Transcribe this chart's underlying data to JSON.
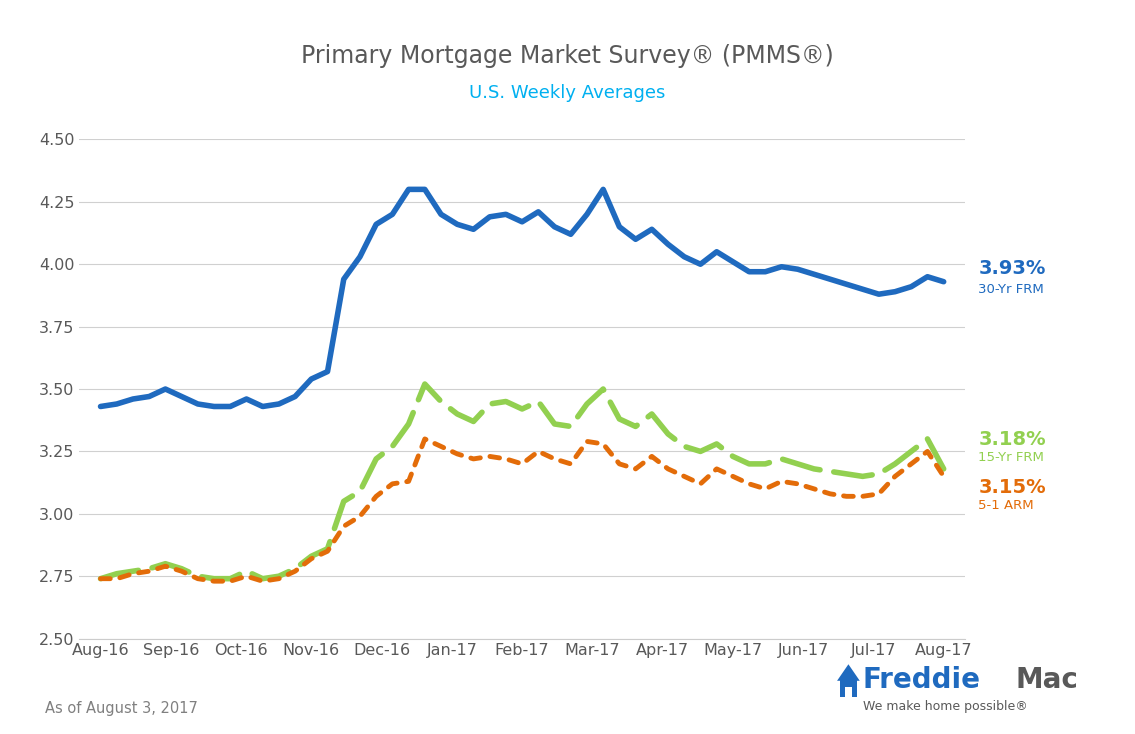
{
  "title": "Primary Mortgage Market Survey® (PMMS®)",
  "subtitle": "U.S. Weekly Averages",
  "footnote": "As of August 3, 2017",
  "ylim": [
    2.5,
    4.5
  ],
  "yticks": [
    2.5,
    2.75,
    3.0,
    3.25,
    3.5,
    3.75,
    4.0,
    4.25,
    4.5
  ],
  "x_labels": [
    "Aug-16",
    "Sep-16",
    "Oct-16",
    "Nov-16",
    "Dec-16",
    "Jan-17",
    "Feb-17",
    "Mar-17",
    "Apr-17",
    "May-17",
    "Jun-17",
    "Jul-17",
    "Aug-17"
  ],
  "title_color": "#595959",
  "subtitle_color": "#00b0f0",
  "footnote_color": "#808080",
  "background_color": "#ffffff",
  "label_30yr_pct": "3.93%",
  "label_30yr_name": "30-Yr FRM",
  "label_15yr_pct": "3.18%",
  "label_15yr_name": "15-Yr FRM",
  "label_arm_pct": "3.15%",
  "label_arm_name": "5-1 ARM",
  "color_30yr": "#1f6abf",
  "color_15yr": "#92d050",
  "color_arm": "#e36c09",
  "frm30": [
    3.43,
    3.44,
    3.46,
    3.47,
    3.5,
    3.47,
    3.44,
    3.43,
    3.43,
    3.46,
    3.43,
    3.44,
    3.47,
    3.54,
    3.57,
    3.94,
    4.03,
    4.16,
    4.2,
    4.3,
    4.3,
    4.2,
    4.16,
    4.14,
    4.19,
    4.2,
    4.17,
    4.21,
    4.15,
    4.12,
    4.2,
    4.3,
    4.15,
    4.1,
    4.14,
    4.08,
    4.03,
    4.0,
    4.05,
    4.01,
    3.97,
    3.97,
    3.99,
    3.98,
    3.96,
    3.94,
    3.92,
    3.9,
    3.88,
    3.89,
    3.91,
    3.95,
    3.93
  ],
  "frm15": [
    2.74,
    2.76,
    2.77,
    2.78,
    2.8,
    2.78,
    2.75,
    2.74,
    2.74,
    2.77,
    2.74,
    2.75,
    2.78,
    2.83,
    2.86,
    3.05,
    3.09,
    3.22,
    3.27,
    3.36,
    3.52,
    3.45,
    3.4,
    3.37,
    3.44,
    3.45,
    3.42,
    3.45,
    3.36,
    3.35,
    3.44,
    3.5,
    3.38,
    3.35,
    3.4,
    3.32,
    3.27,
    3.25,
    3.28,
    3.23,
    3.2,
    3.2,
    3.22,
    3.2,
    3.18,
    3.17,
    3.16,
    3.15,
    3.16,
    3.2,
    3.25,
    3.3,
    3.18
  ],
  "arm51": [
    2.74,
    2.74,
    2.76,
    2.77,
    2.79,
    2.77,
    2.74,
    2.73,
    2.73,
    2.75,
    2.73,
    2.74,
    2.77,
    2.82,
    2.85,
    2.95,
    2.99,
    3.07,
    3.12,
    3.13,
    3.3,
    3.27,
    3.24,
    3.22,
    3.23,
    3.22,
    3.2,
    3.25,
    3.22,
    3.2,
    3.29,
    3.28,
    3.2,
    3.18,
    3.23,
    3.18,
    3.15,
    3.12,
    3.18,
    3.15,
    3.12,
    3.1,
    3.13,
    3.12,
    3.1,
    3.08,
    3.07,
    3.07,
    3.08,
    3.15,
    3.2,
    3.25,
    3.15
  ]
}
